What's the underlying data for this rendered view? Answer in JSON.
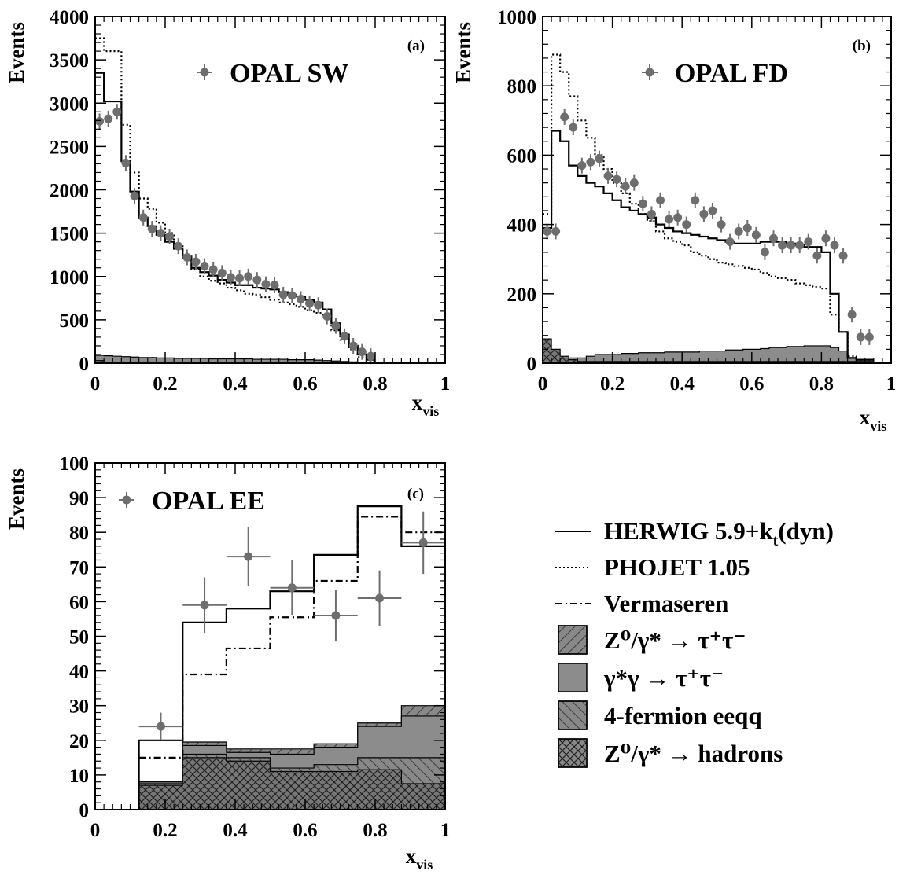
{
  "chart_data": [
    {
      "type": "histogram",
      "panel_label": "(a)",
      "legend_label": "OPAL SW",
      "xlabel": "x",
      "xlabel_sub": "vis",
      "ylabel": "Events",
      "xlim": [
        0,
        1
      ],
      "ylim": [
        0,
        4000
      ],
      "x_ticks": [
        0,
        0.2,
        0.4,
        0.6,
        0.8,
        1
      ],
      "x_tick_labels": [
        "0",
        "0.2",
        "0.4",
        "0.6",
        "0.8",
        "1"
      ],
      "y_ticks": [
        0,
        500,
        1000,
        1500,
        2000,
        2500,
        3000,
        3500,
        4000
      ],
      "y_tick_labels": [
        "0",
        "500",
        "1000",
        "1500",
        "2000",
        "2500",
        "3000",
        "3500",
        "4000"
      ],
      "bin_edges": [
        0,
        0.025,
        0.05,
        0.075,
        0.1,
        0.125,
        0.15,
        0.175,
        0.2,
        0.225,
        0.25,
        0.275,
        0.3,
        0.325,
        0.35,
        0.375,
        0.4,
        0.425,
        0.45,
        0.475,
        0.5,
        0.525,
        0.55,
        0.575,
        0.6,
        0.625,
        0.65,
        0.675,
        0.7,
        0.725,
        0.75,
        0.775,
        0.8
      ],
      "data_x": [
        0.0125,
        0.0375,
        0.0625,
        0.0875,
        0.1125,
        0.1375,
        0.1625,
        0.1875,
        0.2125,
        0.2375,
        0.2625,
        0.2875,
        0.3125,
        0.3375,
        0.3625,
        0.3875,
        0.4125,
        0.4375,
        0.4625,
        0.4875,
        0.5125,
        0.5375,
        0.5625,
        0.5875,
        0.6125,
        0.6375,
        0.6625,
        0.6875,
        0.7125,
        0.7375,
        0.7625,
        0.7875
      ],
      "data_y": [
        2790,
        2820,
        2900,
        2310,
        1930,
        1680,
        1550,
        1500,
        1460,
        1350,
        1220,
        1170,
        1120,
        1080,
        1040,
        990,
        980,
        1000,
        960,
        910,
        900,
        790,
        780,
        740,
        690,
        670,
        540,
        430,
        310,
        200,
        130,
        80
      ],
      "series": [
        {
          "name": "HERWIG 5.9+kt(dyn)",
          "values": [
            3350,
            3020,
            3020,
            2330,
            1980,
            1680,
            1580,
            1480,
            1400,
            1320,
            1230,
            1100,
            1050,
            1010,
            960,
            930,
            900,
            900,
            870,
            860,
            850,
            820,
            790,
            770,
            730,
            700,
            620,
            460,
            330,
            200,
            100,
            40
          ]
        },
        {
          "name": "PHOJET 1.05",
          "values": [
            3750,
            3600,
            3600,
            2750,
            2200,
            1900,
            1780,
            1620,
            1500,
            1350,
            1200,
            1080,
            1000,
            950,
            920,
            870,
            840,
            800,
            790,
            760,
            730,
            700,
            680,
            650,
            610,
            580,
            530,
            380,
            270,
            160,
            70,
            20
          ]
        },
        {
          "name": "γ*γ → τ+τ−",
          "values": [
            90,
            85,
            80,
            75,
            70,
            65,
            65,
            60,
            60,
            55,
            55,
            55,
            55,
            50,
            50,
            50,
            50,
            50,
            45,
            45,
            45,
            45,
            40,
            40,
            40,
            35,
            30,
            25,
            20,
            15,
            10,
            5
          ]
        },
        {
          "name": "Z0/γ* → hadrons",
          "values": [
            30,
            10,
            5,
            5,
            3,
            3,
            3,
            3,
            2,
            2,
            2,
            2,
            2,
            2,
            2,
            2,
            2,
            2,
            2,
            2,
            2,
            2,
            2,
            2,
            2,
            2,
            2,
            1,
            1,
            1,
            1,
            1
          ]
        }
      ]
    },
    {
      "type": "histogram",
      "panel_label": "(b)",
      "legend_label": "OPAL FD",
      "xlabel": "x",
      "xlabel_sub": "vis",
      "ylabel": "Events",
      "xlim": [
        0,
        1
      ],
      "ylim": [
        0,
        1000
      ],
      "x_ticks": [
        0,
        0.2,
        0.4,
        0.6,
        0.8,
        1
      ],
      "x_tick_labels": [
        "0",
        "0.2",
        "0.4",
        "0.6",
        "0.8",
        "1"
      ],
      "y_ticks": [
        0,
        200,
        400,
        600,
        800,
        1000
      ],
      "y_tick_labels": [
        "0",
        "200",
        "400",
        "600",
        "800",
        "1000"
      ],
      "bin_edges": [
        0,
        0.025,
        0.05,
        0.075,
        0.1,
        0.125,
        0.15,
        0.175,
        0.2,
        0.225,
        0.25,
        0.275,
        0.3,
        0.325,
        0.35,
        0.375,
        0.4,
        0.425,
        0.45,
        0.475,
        0.5,
        0.525,
        0.55,
        0.575,
        0.6,
        0.625,
        0.65,
        0.675,
        0.7,
        0.725,
        0.75,
        0.775,
        0.8,
        0.825,
        0.85,
        0.875,
        0.9,
        0.925,
        0.95
      ],
      "data_x": [
        0.0125,
        0.0375,
        0.0625,
        0.0875,
        0.1125,
        0.1375,
        0.1625,
        0.1875,
        0.2125,
        0.2375,
        0.2625,
        0.2875,
        0.3125,
        0.3375,
        0.3625,
        0.3875,
        0.4125,
        0.4375,
        0.4625,
        0.4875,
        0.5125,
        0.5375,
        0.5625,
        0.5875,
        0.6125,
        0.6375,
        0.6625,
        0.6875,
        0.7125,
        0.7375,
        0.7625,
        0.7875,
        0.8125,
        0.8375,
        0.8625,
        0.8875,
        0.9125,
        0.9375
      ],
      "data_y": [
        380,
        380,
        710,
        680,
        570,
        580,
        590,
        540,
        530,
        510,
        520,
        460,
        430,
        470,
        415,
        420,
        400,
        470,
        430,
        440,
        400,
        350,
        380,
        390,
        370,
        320,
        360,
        340,
        340,
        340,
        350,
        310,
        360,
        340,
        310,
        140,
        75,
        75
      ],
      "series": [
        {
          "name": "HERWIG 5.9+kt(dyn)",
          "values": [
            390,
            670,
            640,
            570,
            540,
            520,
            510,
            490,
            470,
            450,
            440,
            430,
            420,
            400,
            390,
            380,
            375,
            370,
            365,
            360,
            355,
            350,
            345,
            345,
            345,
            350,
            350,
            350,
            345,
            340,
            335,
            335,
            320,
            200,
            90,
            15,
            10,
            10
          ]
        },
        {
          "name": "PHOJET 1.05",
          "values": [
            430,
            890,
            840,
            770,
            700,
            650,
            600,
            560,
            520,
            490,
            460,
            430,
            410,
            380,
            360,
            350,
            340,
            320,
            310,
            300,
            290,
            285,
            280,
            275,
            270,
            260,
            250,
            245,
            240,
            230,
            225,
            220,
            215,
            140,
            90,
            20,
            10,
            10
          ]
        },
        {
          "name": "γ*γ → τ+τ−",
          "values": [
            20,
            20,
            15,
            15,
            15,
            20,
            25,
            25,
            25,
            28,
            28,
            30,
            30,
            30,
            32,
            32,
            32,
            32,
            35,
            35,
            35,
            38,
            38,
            40,
            40,
            42,
            45,
            45,
            48,
            48,
            50,
            50,
            50,
            45,
            35,
            15,
            10,
            10
          ]
        },
        {
          "name": "Z0/γ* → hadrons",
          "values": [
            70,
            40,
            20,
            10,
            5,
            5,
            5,
            5,
            5,
            5,
            5,
            5,
            5,
            5,
            5,
            5,
            5,
            5,
            5,
            5,
            5,
            5,
            5,
            5,
            5,
            5,
            5,
            5,
            5,
            5,
            5,
            5,
            5,
            5,
            5,
            5,
            5,
            5
          ]
        }
      ]
    },
    {
      "type": "histogram",
      "panel_label": "(c)",
      "legend_label": "OPAL EE",
      "xlabel": "x",
      "xlabel_sub": "vis",
      "ylabel": "Events",
      "xlim": [
        0,
        1
      ],
      "ylim": [
        0,
        100
      ],
      "x_ticks": [
        0,
        0.2,
        0.4,
        0.6,
        0.8,
        1
      ],
      "x_tick_labels": [
        "0",
        "0.2",
        "0.4",
        "0.6",
        "0.8",
        "1"
      ],
      "y_ticks": [
        0,
        10,
        20,
        30,
        40,
        50,
        60,
        70,
        80,
        90,
        100
      ],
      "y_tick_labels": [
        "0",
        "10",
        "20",
        "30",
        "40",
        "50",
        "60",
        "70",
        "80",
        "90",
        "100"
      ],
      "bin_edges": [
        0.125,
        0.25,
        0.375,
        0.5,
        0.625,
        0.75,
        0.875,
        1.0
      ],
      "data_x": [
        0.1875,
        0.3125,
        0.4375,
        0.5625,
        0.6875,
        0.8125,
        0.9375
      ],
      "data_y": [
        24,
        59,
        73,
        64,
        56,
        61,
        77
      ],
      "data_yerr": [
        4,
        8,
        8.5,
        8,
        7.5,
        8,
        9
      ],
      "series": [
        {
          "name": "HERWIG 5.9+kt(dyn)",
          "values": [
            20,
            54,
            58,
            63,
            73.5,
            87.5,
            76
          ]
        },
        {
          "name": "Vermaseren",
          "values": [
            15,
            39,
            46.5,
            55.5,
            66,
            84.5,
            80
          ]
        },
        {
          "name": "Z0/γ* → τ+τ−",
          "values": [
            8,
            19.5,
            17.5,
            17.5,
            19,
            25,
            30
          ]
        },
        {
          "name": "γ*γ → τ+τ−",
          "values": [
            8,
            18.5,
            16.5,
            16,
            18,
            24,
            27
          ]
        },
        {
          "name": "4-fermion eeqq",
          "values": [
            7.5,
            16,
            15,
            12,
            13,
            15,
            15
          ]
        },
        {
          "name": "Z0/γ* → hadrons",
          "values": [
            7,
            15,
            14,
            11,
            11,
            11.5,
            7.5
          ]
        }
      ]
    }
  ],
  "legend": [
    {
      "label": "HERWIG 5.9+k",
      "sub": "t",
      "suffix": "(dyn)"
    },
    {
      "label": "PHOJET 1.05"
    },
    {
      "label": "Vermaseren"
    },
    {
      "label": "Z⁰/γ* → τ⁺τ⁻"
    },
    {
      "label": "γ*γ → τ⁺τ⁻"
    },
    {
      "label": "4-fermion eeqq"
    },
    {
      "label": "Z⁰/γ* → hadrons"
    }
  ],
  "colors": {
    "data_points": "#6e6e6e",
    "fill_gray": "#8c8c8c",
    "dark_gray": "#777777",
    "axis": "#000000"
  }
}
